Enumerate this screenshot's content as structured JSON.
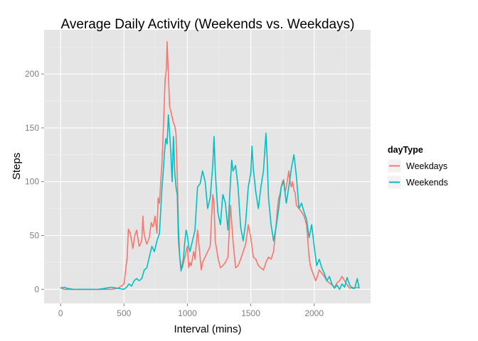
{
  "chart_data": {
    "type": "line",
    "title": "Average Daily Activity (Weekends vs. Weekdays)",
    "xlabel": "Interval (mins)",
    "ylabel": "Steps",
    "xlim": [
      -130,
      2445
    ],
    "ylim": [
      -13,
      241
    ],
    "x_ticks": [
      0,
      500,
      1000,
      1500,
      2000
    ],
    "y_ticks": [
      0,
      50,
      100,
      150,
      200
    ],
    "grid": true,
    "legend": {
      "title": "dayType",
      "position": "right"
    },
    "series": [
      {
        "name": "Weekdays",
        "color": "#f8766d",
        "points": [
          [
            0,
            2
          ],
          [
            25,
            0
          ],
          [
            50,
            0
          ],
          [
            100,
            0
          ],
          [
            200,
            0
          ],
          [
            300,
            0
          ],
          [
            400,
            0
          ],
          [
            450,
            1
          ],
          [
            480,
            3
          ],
          [
            500,
            5
          ],
          [
            510,
            15
          ],
          [
            525,
            30
          ],
          [
            535,
            56
          ],
          [
            550,
            52
          ],
          [
            560,
            45
          ],
          [
            570,
            38
          ],
          [
            585,
            50
          ],
          [
            600,
            55
          ],
          [
            620,
            40
          ],
          [
            640,
            45
          ],
          [
            650,
            68
          ],
          [
            655,
            55
          ],
          [
            665,
            48
          ],
          [
            680,
            42
          ],
          [
            700,
            48
          ],
          [
            715,
            62
          ],
          [
            730,
            58
          ],
          [
            745,
            68
          ],
          [
            760,
            52
          ],
          [
            770,
            85
          ],
          [
            780,
            80
          ],
          [
            790,
            100
          ],
          [
            800,
            118
          ],
          [
            810,
            148
          ],
          [
            820,
            180
          ],
          [
            825,
            195
          ],
          [
            830,
            200
          ],
          [
            835,
            205
          ],
          [
            840,
            230
          ],
          [
            845,
            215
          ],
          [
            850,
            200
          ],
          [
            855,
            185
          ],
          [
            860,
            170
          ],
          [
            870,
            165
          ],
          [
            880,
            160
          ],
          [
            890,
            155
          ],
          [
            900,
            152
          ],
          [
            910,
            145
          ],
          [
            920,
            105
          ],
          [
            930,
            60
          ],
          [
            940,
            30
          ],
          [
            950,
            22
          ],
          [
            960,
            20
          ],
          [
            970,
            25
          ],
          [
            980,
            30
          ],
          [
            990,
            35
          ],
          [
            1000,
            40
          ],
          [
            1010,
            20
          ],
          [
            1020,
            25
          ],
          [
            1030,
            22
          ],
          [
            1050,
            35
          ],
          [
            1060,
            28
          ],
          [
            1080,
            55
          ],
          [
            1100,
            30
          ],
          [
            1110,
            18
          ],
          [
            1120,
            25
          ],
          [
            1140,
            30
          ],
          [
            1160,
            35
          ],
          [
            1180,
            40
          ],
          [
            1190,
            65
          ],
          [
            1200,
            88
          ],
          [
            1210,
            80
          ],
          [
            1220,
            45
          ],
          [
            1230,
            38
          ],
          [
            1240,
            30
          ],
          [
            1260,
            20
          ],
          [
            1280,
            22
          ],
          [
            1300,
            25
          ],
          [
            1320,
            30
          ],
          [
            1340,
            78
          ],
          [
            1360,
            45
          ],
          [
            1380,
            20
          ],
          [
            1400,
            22
          ],
          [
            1420,
            28
          ],
          [
            1440,
            35
          ],
          [
            1460,
            42
          ],
          [
            1480,
            60
          ],
          [
            1500,
            48
          ],
          [
            1520,
            30
          ],
          [
            1540,
            28
          ],
          [
            1560,
            22
          ],
          [
            1580,
            20
          ],
          [
            1600,
            18
          ],
          [
            1620,
            25
          ],
          [
            1640,
            30
          ],
          [
            1660,
            28
          ],
          [
            1680,
            35
          ],
          [
            1700,
            60
          ],
          [
            1710,
            75
          ],
          [
            1720,
            85
          ],
          [
            1730,
            88
          ],
          [
            1740,
            95
          ],
          [
            1750,
            100
          ],
          [
            1760,
            102
          ],
          [
            1770,
            90
          ],
          [
            1780,
            95
          ],
          [
            1800,
            110
          ],
          [
            1810,
            100
          ],
          [
            1820,
            95
          ],
          [
            1830,
            100
          ],
          [
            1840,
            92
          ],
          [
            1850,
            90
          ],
          [
            1860,
            78
          ],
          [
            1880,
            75
          ],
          [
            1900,
            72
          ],
          [
            1920,
            68
          ],
          [
            1940,
            60
          ],
          [
            1950,
            45
          ],
          [
            1960,
            30
          ],
          [
            1970,
            22
          ],
          [
            1980,
            18
          ],
          [
            1990,
            15
          ],
          [
            2000,
            12
          ],
          [
            2010,
            8
          ],
          [
            2020,
            10
          ],
          [
            2040,
            18
          ],
          [
            2060,
            15
          ],
          [
            2080,
            12
          ],
          [
            2100,
            8
          ],
          [
            2120,
            6
          ],
          [
            2140,
            4
          ],
          [
            2160,
            2
          ],
          [
            2180,
            6
          ],
          [
            2200,
            8
          ],
          [
            2220,
            12
          ],
          [
            2240,
            8
          ],
          [
            2260,
            4
          ],
          [
            2280,
            1
          ],
          [
            2300,
            2
          ],
          [
            2320,
            1
          ],
          [
            2340,
            2
          ],
          [
            2355,
            1
          ]
        ]
      },
      {
        "name": "Weekends",
        "color": "#00bfc4",
        "points": [
          [
            0,
            1
          ],
          [
            30,
            2
          ],
          [
            50,
            1
          ],
          [
            100,
            0
          ],
          [
            200,
            0
          ],
          [
            300,
            0
          ],
          [
            350,
            1
          ],
          [
            400,
            2
          ],
          [
            450,
            1
          ],
          [
            500,
            0
          ],
          [
            520,
            2
          ],
          [
            540,
            5
          ],
          [
            560,
            3
          ],
          [
            580,
            8
          ],
          [
            600,
            10
          ],
          [
            620,
            8
          ],
          [
            640,
            10
          ],
          [
            660,
            18
          ],
          [
            680,
            20
          ],
          [
            700,
            30
          ],
          [
            720,
            40
          ],
          [
            740,
            35
          ],
          [
            760,
            45
          ],
          [
            780,
            52
          ],
          [
            800,
            95
          ],
          [
            810,
            110
          ],
          [
            820,
            128
          ],
          [
            830,
            140
          ],
          [
            840,
            135
          ],
          [
            850,
            162
          ],
          [
            860,
            145
          ],
          [
            870,
            125
          ],
          [
            880,
            100
          ],
          [
            890,
            142
          ],
          [
            900,
            110
          ],
          [
            910,
            95
          ],
          [
            920,
            88
          ],
          [
            930,
            45
          ],
          [
            940,
            30
          ],
          [
            950,
            17
          ],
          [
            960,
            22
          ],
          [
            970,
            30
          ],
          [
            980,
            45
          ],
          [
            990,
            55
          ],
          [
            1000,
            50
          ],
          [
            1010,
            40
          ],
          [
            1020,
            35
          ],
          [
            1040,
            45
          ],
          [
            1060,
            55
          ],
          [
            1080,
            95
          ],
          [
            1100,
            98
          ],
          [
            1120,
            110
          ],
          [
            1140,
            100
          ],
          [
            1160,
            75
          ],
          [
            1180,
            85
          ],
          [
            1200,
            115
          ],
          [
            1210,
            142
          ],
          [
            1220,
            110
          ],
          [
            1240,
            72
          ],
          [
            1260,
            60
          ],
          [
            1280,
            88
          ],
          [
            1300,
            80
          ],
          [
            1320,
            55
          ],
          [
            1340,
            100
          ],
          [
            1350,
            120
          ],
          [
            1360,
            110
          ],
          [
            1380,
            115
          ],
          [
            1400,
            95
          ],
          [
            1420,
            58
          ],
          [
            1440,
            45
          ],
          [
            1460,
            62
          ],
          [
            1480,
            95
          ],
          [
            1500,
            108
          ],
          [
            1510,
            133
          ],
          [
            1520,
            112
          ],
          [
            1540,
            90
          ],
          [
            1560,
            75
          ],
          [
            1580,
            95
          ],
          [
            1600,
            110
          ],
          [
            1620,
            145
          ],
          [
            1630,
            120
          ],
          [
            1640,
            85
          ],
          [
            1660,
            60
          ],
          [
            1680,
            45
          ],
          [
            1700,
            58
          ],
          [
            1720,
            75
          ],
          [
            1740,
            95
          ],
          [
            1760,
            100
          ],
          [
            1780,
            80
          ],
          [
            1800,
            95
          ],
          [
            1820,
            112
          ],
          [
            1840,
            125
          ],
          [
            1860,
            105
          ],
          [
            1870,
            90
          ],
          [
            1880,
            75
          ],
          [
            1900,
            80
          ],
          [
            1920,
            72
          ],
          [
            1940,
            65
          ],
          [
            1960,
            48
          ],
          [
            1980,
            60
          ],
          [
            2000,
            40
          ],
          [
            2020,
            22
          ],
          [
            2040,
            28
          ],
          [
            2060,
            20
          ],
          [
            2080,
            15
          ],
          [
            2100,
            8
          ],
          [
            2120,
            12
          ],
          [
            2140,
            5
          ],
          [
            2160,
            1
          ],
          [
            2180,
            4
          ],
          [
            2200,
            0
          ],
          [
            2220,
            5
          ],
          [
            2240,
            2
          ],
          [
            2260,
            11
          ],
          [
            2280,
            4
          ],
          [
            2300,
            1
          ],
          [
            2320,
            1
          ],
          [
            2340,
            10
          ],
          [
            2355,
            1
          ]
        ]
      }
    ]
  }
}
